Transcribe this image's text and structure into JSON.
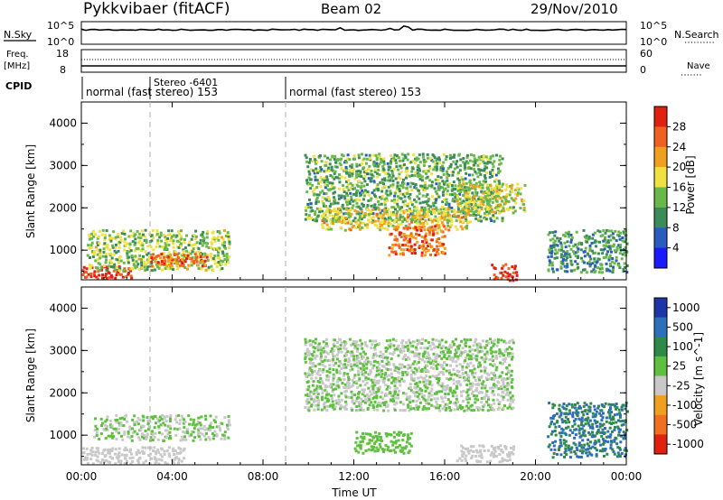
{
  "header": {
    "station": "Pykkvibaer (fitACF)",
    "beam": "Beam 02",
    "date": "29/Nov/2010"
  },
  "noise_panel": {
    "left_label": "N.Sky",
    "right_label": "N.Search",
    "left_ticks": [
      "10^5",
      "10^0"
    ],
    "right_ticks": [
      "10^5",
      "10^0"
    ]
  },
  "freq_panel": {
    "left_label_1": "Freq.",
    "left_label_2": "[MHz]",
    "right_label": "Nave",
    "left_ticks": [
      "18",
      "8"
    ],
    "right_ticks": [
      "60",
      "0"
    ]
  },
  "cpid": {
    "label": "CPID",
    "segments": [
      {
        "start": "00:00",
        "text": "normal (fast stereo) 153"
      },
      {
        "start": "03:00",
        "text": "Stereo -6401"
      },
      {
        "start": "09:00",
        "text": "normal (fast stereo) 153"
      }
    ]
  },
  "chart_data": [
    {
      "type": "heatmap",
      "title": "",
      "ylabel": "Slant Range [km]",
      "xlabel": "",
      "ylim": [
        300,
        4500
      ],
      "yticks": [
        "1000",
        "2000",
        "3000",
        "4000"
      ],
      "colorbar": {
        "label": "Power [dB]",
        "ticks": [
          "4",
          "8",
          "12",
          "16",
          "20",
          "24",
          "28"
        ],
        "colors": [
          "#1a1aff",
          "#2a5cc0",
          "#3c8c5a",
          "#6ab84a",
          "#f0e040",
          "#f0a020",
          "#f06020",
          "#e02010"
        ],
        "range": [
          0,
          30
        ]
      },
      "regions": [
        {
          "t0": 0.0,
          "t1": 2.2,
          "r0": 350,
          "r1": 650,
          "value": 28
        },
        {
          "t0": 0.2,
          "t1": 6.5,
          "r0": 550,
          "r1": 1500,
          "value": 14
        },
        {
          "t0": 3.0,
          "t1": 5.5,
          "r0": 650,
          "r1": 950,
          "value": 24
        },
        {
          "t0": 9.8,
          "t1": 18.5,
          "r0": 1700,
          "r1": 3300,
          "value": 12
        },
        {
          "t0": 10.5,
          "t1": 17.0,
          "r0": 1500,
          "r1": 2000,
          "value": 18
        },
        {
          "t0": 13.5,
          "t1": 16.0,
          "r0": 900,
          "r1": 1600,
          "value": 24
        },
        {
          "t0": 16.5,
          "t1": 19.5,
          "r0": 1900,
          "r1": 2600,
          "value": 16
        },
        {
          "t0": 18.0,
          "t1": 19.2,
          "r0": 300,
          "r1": 700,
          "value": 28
        },
        {
          "t0": 20.5,
          "t1": 24.0,
          "r0": 500,
          "r1": 1500,
          "value": 10
        }
      ]
    },
    {
      "type": "heatmap",
      "title": "",
      "ylabel": "Slant Range [km]",
      "xlabel": "Time UT",
      "ylim": [
        300,
        4500
      ],
      "yticks": [
        "1000",
        "2000",
        "3000",
        "4000"
      ],
      "xticks": [
        "00:00",
        "04:00",
        "08:00",
        "12:00",
        "16:00",
        "20:00",
        "00:00"
      ],
      "colorbar": {
        "label": "Velocity [m s^-1]",
        "ticks": [
          "1000",
          "500",
          "100",
          "25",
          "-25",
          "-100",
          "-500",
          "-1000"
        ],
        "colors": [
          "#1d35a8",
          "#2d6fb8",
          "#2f8a4a",
          "#5fc040",
          "#c8c8c8",
          "#f0a020",
          "#f07020",
          "#e02010"
        ],
        "range": [
          -1000,
          1000
        ]
      },
      "regions": [
        {
          "t0": 0.0,
          "t1": 4.5,
          "r0": 350,
          "r1": 750,
          "value": -100
        },
        {
          "t0": 0.5,
          "t1": 6.5,
          "r0": 900,
          "r1": 1500,
          "value": 0
        },
        {
          "t0": 9.8,
          "t1": 19.0,
          "r0": 1600,
          "r1": 3300,
          "value": 0
        },
        {
          "t0": 12.0,
          "t1": 14.5,
          "r0": 600,
          "r1": 1100,
          "value": 100
        },
        {
          "t0": 16.5,
          "t1": 19.0,
          "r0": 400,
          "r1": 800,
          "value": -100
        },
        {
          "t0": 20.5,
          "t1": 24.0,
          "r0": 500,
          "r1": 1800,
          "value": 500
        }
      ]
    }
  ],
  "colors": {
    "grid_dash": "#b0b0b0",
    "axis": "#000000"
  }
}
